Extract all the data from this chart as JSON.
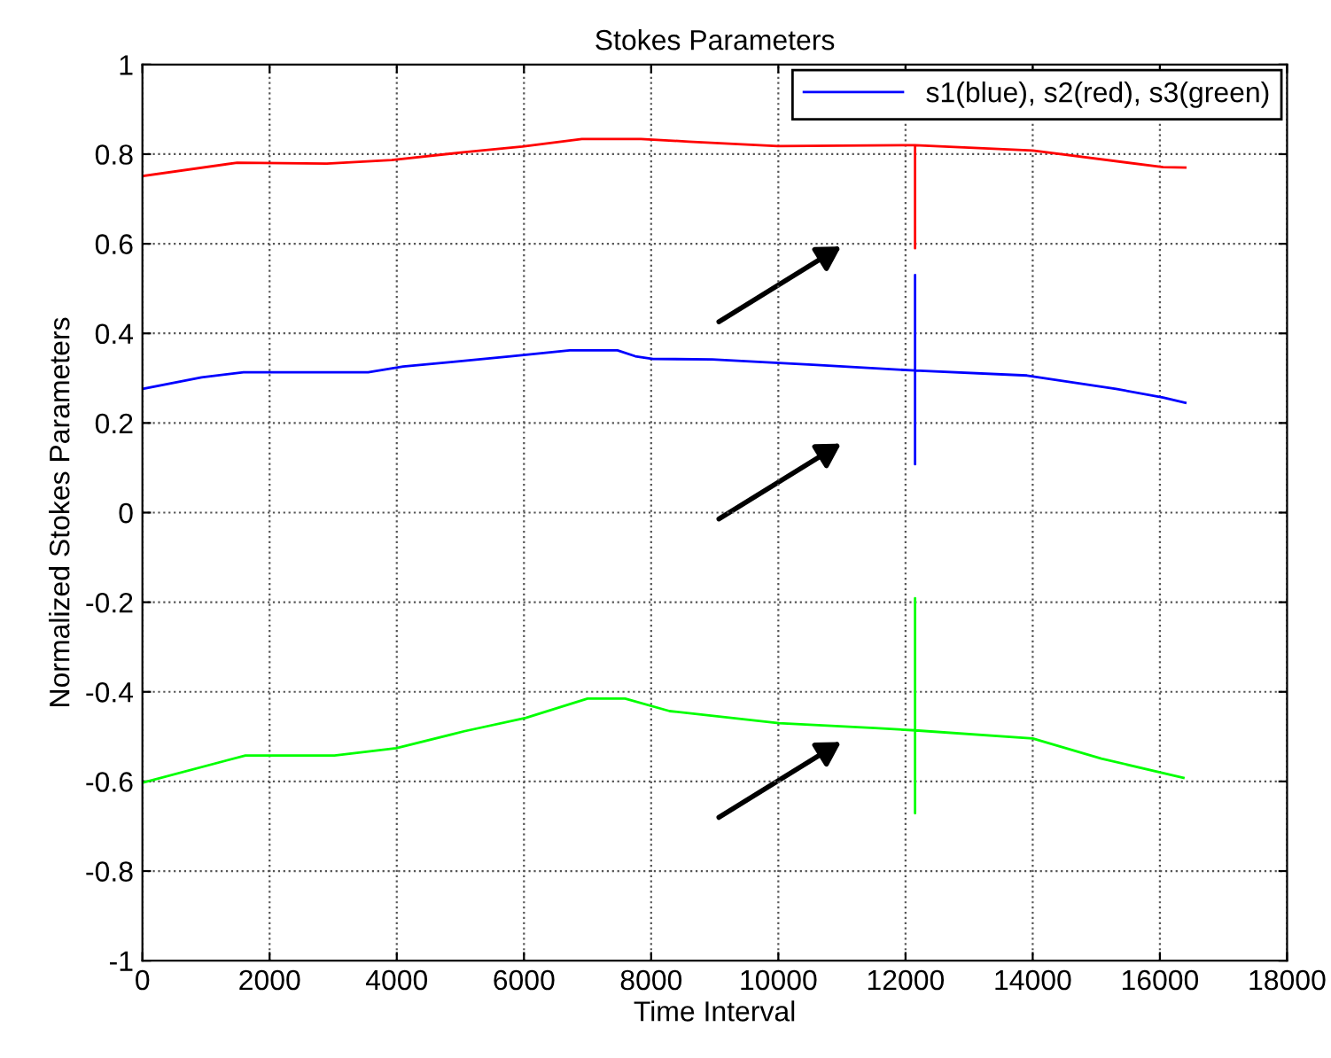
{
  "chart_data": {
    "type": "line",
    "title": "Stokes Parameters",
    "xlabel": "Time Interval",
    "ylabel": "Normalized Stokes Parameters",
    "xlim": [
      0,
      18000
    ],
    "xticks": [
      0,
      2000,
      4000,
      6000,
      8000,
      10000,
      12000,
      14000,
      16000,
      18000
    ],
    "ylim": [
      -1,
      1
    ],
    "yticks": [
      -1,
      -0.8,
      -0.6,
      -0.4,
      -0.2,
      0,
      0.2,
      0.4,
      0.6,
      0.8,
      1
    ],
    "grid": true,
    "legend": "top right",
    "marker": "none",
    "line_style": "solid",
    "series": [
      {
        "name": "s1(blue), s2(red), s3(green)",
        "color": "#0000ff",
        "x": [
          0,
          930,
          1590,
          3550,
          4100,
          4850,
          5790,
          6720,
          7470,
          7750,
          8030,
          8960,
          10540,
          12150,
          12150,
          12150,
          12150,
          13910,
          15310,
          16050,
          16400
        ],
        "values": [
          0.276,
          0.302,
          0.313,
          0.313,
          0.326,
          0.336,
          0.349,
          0.362,
          0.362,
          0.349,
          0.343,
          0.342,
          0.33,
          0.317,
          0.53,
          0.108,
          0.317,
          0.306,
          0.276,
          0.257,
          0.245
        ]
      },
      {
        "color": "#ff0000",
        "x": [
          0,
          1490,
          2900,
          3920,
          5040,
          5975,
          6910,
          7840,
          8590,
          9990,
          12150,
          12150,
          12150,
          14000,
          16050,
          16400
        ],
        "values": [
          0.751,
          0.781,
          0.779,
          0.787,
          0.804,
          0.817,
          0.834,
          0.834,
          0.828,
          0.818,
          0.82,
          0.59,
          0.82,
          0.808,
          0.771,
          0.77
        ]
      },
      {
        "color": "#00ff00",
        "x": [
          0,
          1620,
          3020,
          3990,
          5060,
          6030,
          7000,
          7590,
          8290,
          10010,
          11520,
          12150,
          12150,
          12150,
          12150,
          14000,
          15080,
          16370
        ],
        "values": [
          -0.603,
          -0.542,
          -0.542,
          -0.526,
          -0.488,
          -0.458,
          -0.415,
          -0.415,
          -0.443,
          -0.47,
          -0.481,
          -0.486,
          -0.191,
          -0.671,
          -0.486,
          -0.504,
          -0.549,
          -0.592
        ]
      }
    ]
  }
}
